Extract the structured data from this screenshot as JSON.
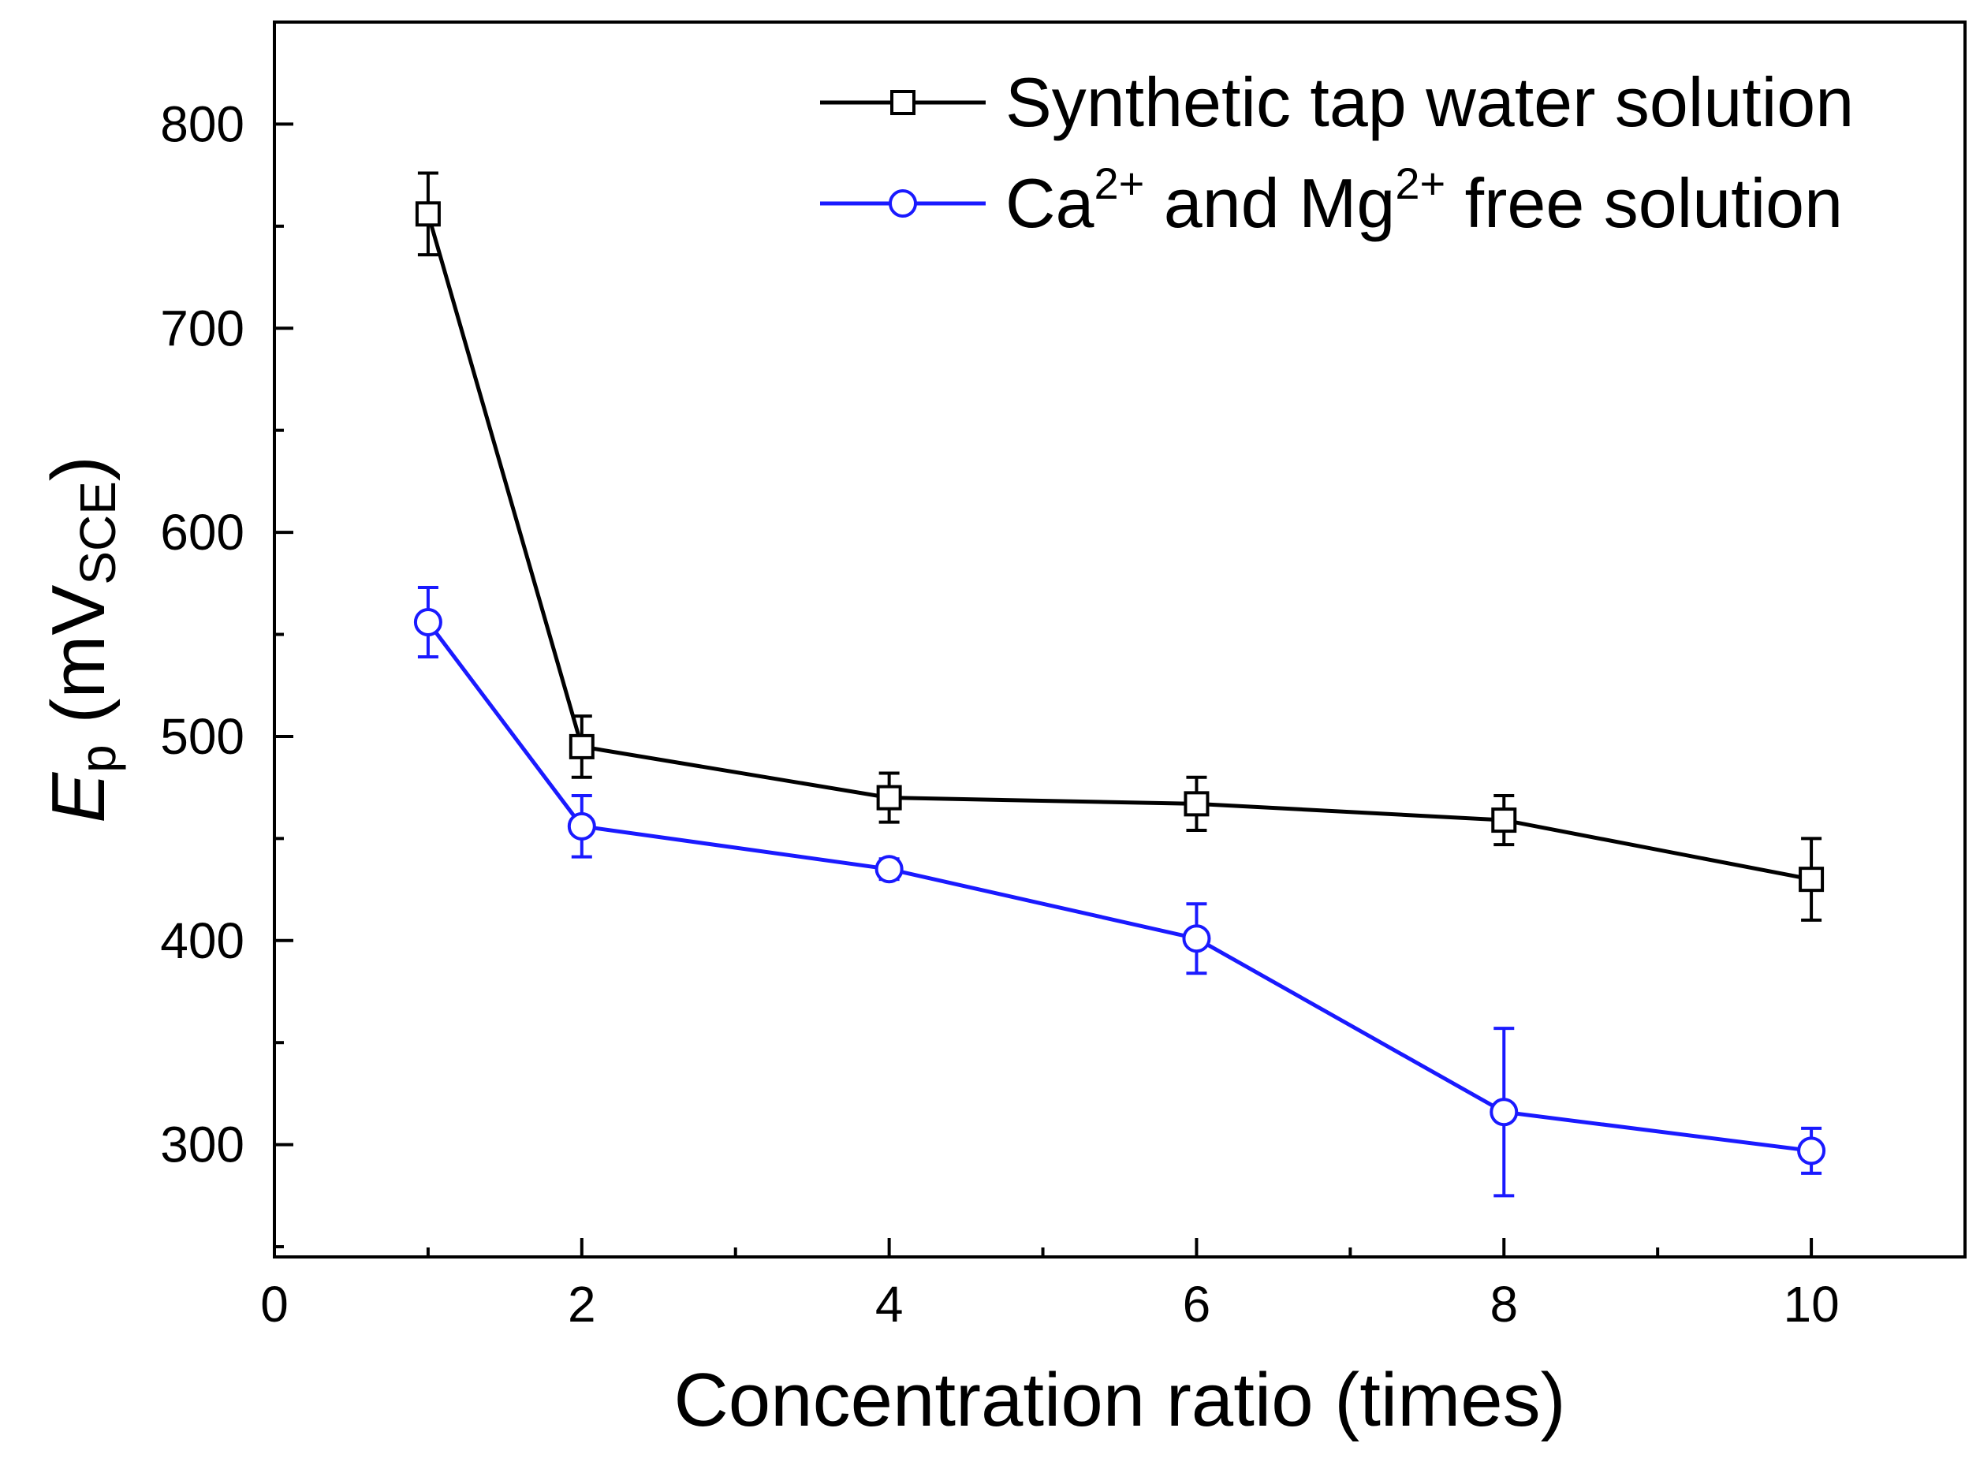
{
  "chart_data": {
    "type": "line",
    "title": "",
    "xlabel": "Concentration ratio (times)",
    "ylabel": {
      "symbol": "E",
      "symbol_sub": "p",
      "unit_open": " (mV",
      "unit_sub": "SCE",
      "unit_close": ")"
    },
    "xlim": [
      0,
      11
    ],
    "ylim": [
      245,
      850
    ],
    "x_ticks": [
      0,
      2,
      4,
      6,
      8,
      10
    ],
    "x_tick_labels": [
      "0",
      "2",
      "4",
      "6",
      "8",
      "10"
    ],
    "x_minor_ticks": [
      1,
      3,
      5,
      7,
      9
    ],
    "y_ticks": [
      300,
      400,
      500,
      600,
      700,
      800
    ],
    "y_tick_labels": [
      "300",
      "400",
      "500",
      "600",
      "700",
      "800"
    ],
    "y_minor_ticks": [
      250,
      350,
      450,
      550,
      650,
      750,
      850
    ],
    "legend_position": "top-right",
    "series": [
      {
        "name": "Synthetic tap water solution",
        "legend": {
          "text": "Synthetic tap water solution"
        },
        "color": "#000000",
        "marker": "square",
        "x": [
          1,
          2,
          4,
          6,
          8,
          10
        ],
        "y": [
          756,
          495,
          470,
          467,
          459,
          430
        ],
        "err": [
          20,
          15,
          12,
          13,
          12,
          20
        ]
      },
      {
        "name": "Ca2+ and Mg2+ free solution",
        "legend": {
          "pre": "Ca",
          "sup1": "2+",
          "mid": " and Mg",
          "sup2": "2+",
          "post": " free solution"
        },
        "color": "#1a1aff",
        "marker": "circle",
        "x": [
          1,
          2,
          4,
          6,
          8,
          10
        ],
        "y": [
          556,
          456,
          435,
          401,
          316,
          297
        ],
        "err": [
          17,
          15,
          5,
          17,
          41,
          11
        ]
      }
    ]
  }
}
